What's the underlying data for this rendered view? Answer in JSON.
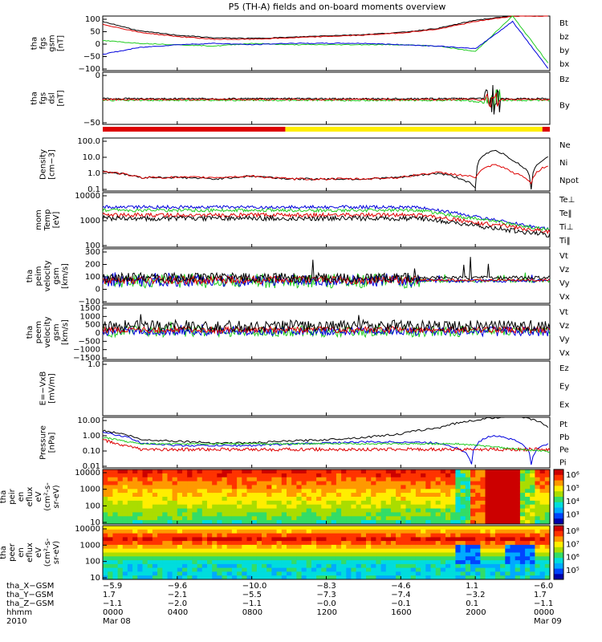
{
  "title": "P5 (TH-A) fields and on-board moments overview",
  "colors": {
    "black": "#000000",
    "red": "#dd0000",
    "green": "#22cc22",
    "blue": "#0000dd",
    "yellow": "#ffee00"
  },
  "panels": [
    {
      "id": "fgs_gsm",
      "ylabel": [
        "tha",
        "fgs",
        "gsm",
        "[nT]"
      ],
      "ylim": [
        -100,
        100
      ],
      "yticks": [
        "100",
        "50",
        "0",
        "−50",
        "−100"
      ],
      "legend": [
        {
          "text": "Bt",
          "color": "#000000"
        },
        {
          "text": "bz",
          "color": "#dd0000"
        },
        {
          "text": "by",
          "color": "#22cc22"
        },
        {
          "text": "bx",
          "color": "#0000dd"
        }
      ]
    },
    {
      "id": "fgs_dsl",
      "ylabel": [
        "tha",
        "fgs",
        "dsl",
        "[nT]"
      ],
      "ylim": [
        -75,
        25
      ],
      "yticks": [
        "0",
        "−50"
      ],
      "legend": [
        {
          "text": "Bz",
          "color": "#dd0000"
        },
        {
          "text": "By",
          "color": "#22cc22"
        }
      ]
    },
    {
      "id": "density",
      "ylabel": [
        "Density",
        "[cm−3]"
      ],
      "scale": "log",
      "yticks": [
        "100.0",
        "10.0",
        "1.0",
        "0.1"
      ],
      "legend": [
        {
          "text": "Ne",
          "color": "#dd0000"
        },
        {
          "text": "Ni",
          "color": "#000000"
        },
        {
          "text": "Npot",
          "color": "#0000dd"
        }
      ]
    },
    {
      "id": "temp",
      "ylabel": [
        "mom",
        "Temp",
        "[eV]"
      ],
      "scale": "log",
      "yticks": [
        "10000",
        "1000",
        "100"
      ],
      "legend": [
        {
          "text": "Te⊥",
          "color": "#dd0000"
        },
        {
          "text": "Te‖",
          "color": "#000000"
        },
        {
          "text": "Ti⊥",
          "color": "#22cc22"
        },
        {
          "text": "Ti‖",
          "color": "#22cc22"
        }
      ]
    },
    {
      "id": "peim_vel",
      "ylabel": [
        "tha",
        "peim",
        "velocity",
        "gsm",
        "[km/s]"
      ],
      "ylim": [
        -100,
        300
      ],
      "yticks": [
        "300",
        "200",
        "100",
        "0",
        "−100"
      ],
      "legend": [
        {
          "text": "Vt",
          "color": "#000000"
        },
        {
          "text": "Vz",
          "color": "#dd0000"
        },
        {
          "text": "Vy",
          "color": "#22cc22"
        },
        {
          "text": "Vx",
          "color": "#0000dd"
        }
      ]
    },
    {
      "id": "peem_vel",
      "ylabel": [
        "tha",
        "peem",
        "velocity",
        "gsm",
        "[km/s]"
      ],
      "ylim": [
        -1500,
        1500
      ],
      "yticks": [
        "1500",
        "1000",
        "500",
        "0",
        "−500",
        "−1000",
        "−1500"
      ],
      "legend": [
        {
          "text": "Vt",
          "color": "#000000"
        },
        {
          "text": "Vz",
          "color": "#dd0000"
        },
        {
          "text": "Vy",
          "color": "#22cc22"
        },
        {
          "text": "Vx",
          "color": "#0000dd"
        }
      ]
    },
    {
      "id": "efield",
      "ylabel": [
        "E=−VxB",
        "[mV/m]"
      ],
      "ylim": [
        -1,
        1
      ],
      "yticks": [
        "1.0"
      ],
      "legend": [
        {
          "text": "Ez",
          "color": "#dd0000"
        },
        {
          "text": "Ey",
          "color": "#22cc22"
        },
        {
          "text": "Ex",
          "color": "#0000dd"
        }
      ]
    },
    {
      "id": "pressure",
      "ylabel": [
        "Pressure",
        "[nPa]"
      ],
      "scale": "log",
      "yticks": [
        "10.00",
        "1.00",
        "0.10",
        "0.01"
      ],
      "legend": [
        {
          "text": "Pt",
          "color": "#000000"
        },
        {
          "text": "Pb",
          "color": "#dd0000"
        },
        {
          "text": "Pe",
          "color": "#22cc22"
        },
        {
          "text": "Pi",
          "color": "#0000dd"
        }
      ]
    },
    {
      "id": "peir_eflux",
      "ylabel": [
        "tha",
        "peir",
        "en",
        "eflux",
        "eV",
        "(cm²-s-",
        "sr-eV)"
      ],
      "scale": "log",
      "yticks": [
        "10000",
        "1000",
        "100",
        "10"
      ],
      "colorbar": [
        "10⁶",
        "10⁵",
        "10⁴",
        "10³"
      ]
    },
    {
      "id": "peer_eflux",
      "ylabel": [
        "tha",
        "peer",
        "en",
        "eflux",
        "eV",
        "(cm²-s-",
        "sr-eV)"
      ],
      "scale": "log",
      "yticks": [
        "10000",
        "1000",
        "100",
        "10"
      ],
      "colorbar": [
        "10⁸",
        "10⁷",
        "10⁶",
        "10⁵"
      ]
    }
  ],
  "footer": {
    "rows": [
      {
        "label": "tha_X−GSM",
        "values": [
          "−5.9",
          "−9.6",
          "−10.0",
          "−8.3",
          "−4.6",
          "1.1",
          "−6.0"
        ]
      },
      {
        "label": "tha_Y−GSM",
        "values": [
          "1.7",
          "−2.1",
          "−5.5",
          "−7.3",
          "−7.4",
          "−3.2",
          "1.7"
        ]
      },
      {
        "label": "tha_Z−GSM",
        "values": [
          "−1.1",
          "−2.0",
          "−1.1",
          "−0.0",
          "−0.1",
          "0.1",
          "−1.1"
        ]
      },
      {
        "label": "hhmm",
        "values": [
          "0000",
          "0400",
          "0800",
          "1200",
          "1600",
          "2000",
          "0000"
        ]
      },
      {
        "label": "2010",
        "values": [
          "Mar 08",
          "",
          "",
          "",
          "",
          "",
          "Mar 09"
        ]
      }
    ]
  },
  "chart_data": {
    "type": "line",
    "title": "P5 (TH-A) fields and on-board moments overview",
    "x_ticks": [
      "0000",
      "0400",
      "0800",
      "1200",
      "1600",
      "2000",
      "0000"
    ],
    "x_range_hours": [
      0,
      24
    ],
    "series": [
      {
        "panel": "fgs_gsm",
        "name": "Bt",
        "x": [
          0,
          2,
          4,
          6,
          8,
          10,
          12,
          14,
          16,
          18,
          20,
          22,
          24
        ],
        "values": [
          80,
          45,
          30,
          20,
          18,
          22,
          28,
          32,
          40,
          55,
          85,
          100,
          100
        ]
      },
      {
        "panel": "fgs_gsm",
        "name": "bz",
        "x": [
          0,
          2,
          4,
          6,
          8,
          10,
          12,
          14,
          16,
          18,
          20,
          22,
          24
        ],
        "values": [
          70,
          40,
          25,
          15,
          15,
          20,
          25,
          30,
          38,
          52,
          80,
          100,
          100
        ]
      },
      {
        "panel": "fgs_gsm",
        "name": "by",
        "x": [
          0,
          2,
          4,
          6,
          8,
          10,
          12,
          14,
          16,
          18,
          20,
          22,
          24
        ],
        "values": [
          10,
          0,
          -5,
          -10,
          0,
          -5,
          -5,
          -5,
          -5,
          -10,
          -30,
          100,
          -80
        ]
      },
      {
        "panel": "fgs_gsm",
        "name": "bx",
        "x": [
          0,
          2,
          4,
          6,
          8,
          10,
          12,
          14,
          16,
          18,
          20,
          22,
          24
        ],
        "values": [
          -40,
          -15,
          -5,
          0,
          -5,
          0,
          0,
          0,
          -5,
          -10,
          -20,
          80,
          -100
        ]
      },
      {
        "panel": "density",
        "name": "Ni",
        "x": [
          0,
          2,
          4,
          6,
          8,
          10,
          12,
          14,
          16,
          18,
          20,
          21,
          22,
          23,
          24
        ],
        "values": [
          1.2,
          0.5,
          0.5,
          0.4,
          0.6,
          0.4,
          0.4,
          0.4,
          0.5,
          0.9,
          0.1,
          25,
          5,
          0.1,
          10
        ]
      },
      {
        "panel": "density",
        "name": "Ne",
        "x": [
          0,
          2,
          4,
          6,
          8,
          10,
          12,
          14,
          16,
          18,
          20,
          21,
          22,
          23,
          24
        ],
        "values": [
          1.2,
          0.5,
          0.5,
          0.5,
          0.6,
          0.4,
          0.4,
          0.4,
          0.5,
          1.0,
          0.5,
          3,
          1,
          0.2,
          3
        ]
      },
      {
        "panel": "pressure",
        "name": "Pt",
        "x": [
          0,
          2,
          4,
          6,
          8,
          10,
          12,
          14,
          16,
          18,
          20,
          22,
          24
        ],
        "values": [
          2,
          0.5,
          0.4,
          0.3,
          0.3,
          0.4,
          0.5,
          0.7,
          1.2,
          3,
          10,
          20,
          3
        ]
      },
      {
        "panel": "pressure",
        "name": "Pi",
        "x": [
          0,
          2,
          4,
          6,
          8,
          10,
          12,
          14,
          16,
          18,
          19.8,
          21,
          22,
          23,
          24
        ],
        "values": [
          1.5,
          0.3,
          0.2,
          0.2,
          0.2,
          0.25,
          0.3,
          0.35,
          0.35,
          0.3,
          0.01,
          1,
          0.5,
          0.01,
          0.3
        ]
      }
    ]
  }
}
